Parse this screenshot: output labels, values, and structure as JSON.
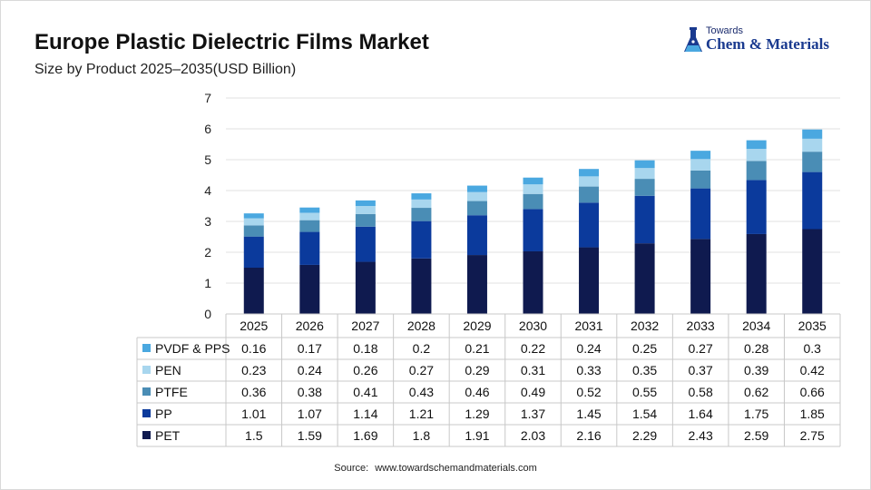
{
  "title": "Europe Plastic Dielectric Films Market",
  "subtitle": "Size by Product 2025–2035(USD Billion)",
  "logo": {
    "top": "Towards",
    "main": "Chem & Materials"
  },
  "source": {
    "label": "Source:",
    "url": "www.towardschemandmaterials.com"
  },
  "chart_data": {
    "type": "bar",
    "stacked": true,
    "categories": [
      "2025",
      "2026",
      "2027",
      "2028",
      "2029",
      "2030",
      "2031",
      "2032",
      "2033",
      "2034",
      "2035"
    ],
    "ylim": [
      0,
      7
    ],
    "yticks": [
      0,
      1,
      2,
      3,
      4,
      5,
      6,
      7
    ],
    "grid": true,
    "data_table": true,
    "series": [
      {
        "name": "PET",
        "color": "#0f1a4f",
        "values": [
          1.5,
          1.59,
          1.69,
          1.8,
          1.91,
          2.03,
          2.16,
          2.29,
          2.43,
          2.59,
          2.75
        ]
      },
      {
        "name": "PP",
        "color": "#0b3a9c",
        "values": [
          1.01,
          1.07,
          1.14,
          1.21,
          1.29,
          1.37,
          1.45,
          1.54,
          1.64,
          1.75,
          1.85
        ]
      },
      {
        "name": "PTFE",
        "color": "#4a8db5",
        "values": [
          0.36,
          0.38,
          0.41,
          0.43,
          0.46,
          0.49,
          0.52,
          0.55,
          0.58,
          0.62,
          0.66
        ]
      },
      {
        "name": "PEN",
        "color": "#a8d6ee",
        "values": [
          0.23,
          0.24,
          0.26,
          0.27,
          0.29,
          0.31,
          0.33,
          0.35,
          0.37,
          0.39,
          0.42
        ]
      },
      {
        "name": "PVDF & PPS",
        "color": "#4aa8e0",
        "values": [
          0.16,
          0.17,
          0.18,
          0.2,
          0.21,
          0.22,
          0.24,
          0.25,
          0.27,
          0.28,
          0.3
        ]
      }
    ]
  }
}
